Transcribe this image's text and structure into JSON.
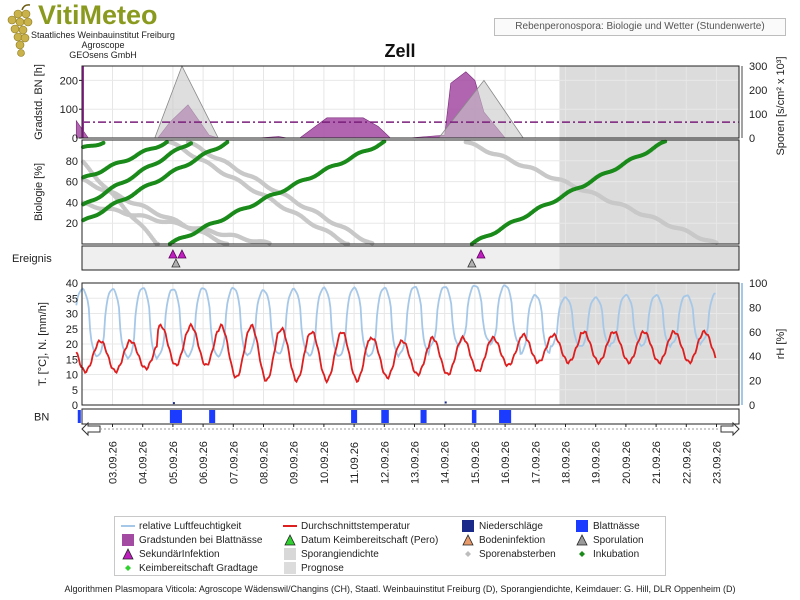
{
  "header": {
    "logo_name": "VitiMeteo",
    "org_lines": [
      "Staatliches Weinbauinstitut Freiburg",
      "Agroscope",
      "GEOsens GmbH"
    ],
    "subtitle": "Rebenperonospora: Biologie und Wetter (Stundenwerte)",
    "title": "Zell"
  },
  "colors": {
    "humidity": "#a6c8e8",
    "temperature": "#dd1f1f",
    "gradstunden": "#a34aa3",
    "secondary_infection": "#c01fc0",
    "sporangia_density": "#bfbfbf",
    "spores_dying": "#c8c8c8",
    "incubation": "#1a8a1a",
    "germination_ready": "#2fd02f",
    "precip": "#1a2a8a",
    "leaf_wetness": "#1b3bff",
    "forecast": "#dcdcdc",
    "threshold_line": "#7a1e7a"
  },
  "axes": {
    "panel1_left_label": "Gradstd. BN [h]",
    "panel1_left_ticks": [
      "0",
      "100",
      "200"
    ],
    "panel1_right_label": "Sporen [s/cm² x 10³]",
    "panel1_right_ticks": [
      "0",
      "100",
      "200",
      "300"
    ],
    "panel2_label": "Biologie [%]",
    "panel2_ticks": [
      "20",
      "40",
      "60",
      "80"
    ],
    "panel3_label": "Ereignis",
    "panel4_left_label": "T. [°C], N. [mm/h]",
    "panel4_left_ticks": [
      "0",
      "5",
      "10",
      "15",
      "20",
      "25",
      "30",
      "35",
      "40"
    ],
    "panel4_right_label": "rH [%]",
    "panel4_right_ticks": [
      "0",
      "20",
      "40",
      "60",
      "80",
      "100"
    ],
    "panel5_label": "BN",
    "dates": [
      "03.09.26",
      "04.09.26",
      "05.09.26",
      "06.09.26",
      "07.09.26",
      "08.09.26",
      "09.09.26",
      "10.09.26",
      "11.09.26",
      "12.09.26",
      "13.09.26",
      "14.09.26",
      "15.09.26",
      "16.09.26",
      "17.09.26",
      "18.09.26",
      "19.09.26",
      "20.09.26",
      "21.09.26",
      "22.09.26",
      "23.09.26"
    ]
  },
  "legend": [
    {
      "label": "relative Luftfeuchtigkeit",
      "symbol": "line",
      "color": "#a6c8e8"
    },
    {
      "label": "Durchschnittstemperatur",
      "symbol": "line",
      "color": "#dd1f1f"
    },
    {
      "label": "Niederschläge",
      "symbol": "square",
      "color": "#1a2a8a"
    },
    {
      "label": "Blattnässe",
      "symbol": "square",
      "color": "#1b3bff"
    },
    {
      "label": "Gradstunden bei Blattnässe",
      "symbol": "square",
      "color": "#a34aa3"
    },
    {
      "label": "Datum Keimbereitschaft (Pero)",
      "symbol": "triangle",
      "color": "#2fd02f"
    },
    {
      "label": "Bodeninfektion",
      "symbol": "triangle",
      "color": "#e89a6a"
    },
    {
      "label": "Sporulation",
      "symbol": "triangle",
      "color": "#9a9a9a"
    },
    {
      "label": "SekundärInfektion",
      "symbol": "triangle",
      "color": "#c01fc0"
    },
    {
      "label": "Sporangiendichte",
      "symbol": "square",
      "color": "#d8d8d8"
    },
    {
      "label": "Sporenabsterben",
      "symbol": "diamond",
      "color": "#bdbdbd"
    },
    {
      "label": "Inkubation",
      "symbol": "diamond",
      "color": "#1a8a1a"
    },
    {
      "label": "Keimbereitschaft Gradtage",
      "symbol": "diamond",
      "color": "#2fd02f"
    },
    {
      "label": "Prognose",
      "symbol": "square",
      "color": "#dcdcdc"
    }
  ],
  "footer": "Algorithmen Plasmopara Viticola: Agroscope Wädenswil/Changins (CH), Staatl. Weinbauinstitut Freiburg (D), Sporangiendichte, Keimdauer: G. Hill, DLR Oppenheim (D)",
  "chart_data": {
    "type": "line",
    "x_unit": "day (index from 03.09.26 = 0)",
    "forecast_start_day": 14.8,
    "x_range": [
      -1.2,
      20.0
    ],
    "panels": {
      "gradstunden_sporen": {
        "gradstunden_area": [
          [
            -1.2,
            60
          ],
          [
            -0.8,
            0
          ],
          [
            1.5,
            0
          ],
          [
            1.9,
            55
          ],
          [
            2.5,
            115
          ],
          [
            3.2,
            10
          ],
          [
            3.5,
            0
          ],
          [
            4.8,
            0
          ],
          [
            5.5,
            5
          ],
          [
            5.8,
            0
          ],
          [
            6.2,
            0
          ],
          [
            7.1,
            70
          ],
          [
            7.6,
            70
          ],
          [
            8.3,
            70
          ],
          [
            8.8,
            40
          ],
          [
            9.2,
            0
          ],
          [
            9.8,
            0
          ],
          [
            11.0,
            10
          ],
          [
            11.2,
            190
          ],
          [
            11.7,
            230
          ],
          [
            12.0,
            200
          ],
          [
            12.3,
            90
          ],
          [
            13.0,
            0
          ]
        ],
        "spores_area": [
          [
            -1.2,
            0
          ],
          [
            1.4,
            0
          ],
          [
            2.3,
            300
          ],
          [
            3.5,
            0
          ],
          [
            10.8,
            0
          ],
          [
            12.3,
            240
          ],
          [
            13.6,
            0
          ]
        ],
        "threshold_gradstunden": 55,
        "left_range": [
          0,
          250
        ],
        "right_range": [
          0,
          300
        ]
      },
      "biologie": {
        "range": [
          0,
          100
        ],
        "incubation_series": [
          {
            "start_day": -1.2,
            "start": 90,
            "end_day": -0.3,
            "end": 98
          },
          {
            "start_day": -1.2,
            "start": 60,
            "end_day": 1.8,
            "end": 98
          },
          {
            "start_day": -1.2,
            "start": 33,
            "end_day": 2.6,
            "end": 98
          },
          {
            "start_day": -1.2,
            "start": 18,
            "end_day": 3.8,
            "end": 98
          },
          {
            "start_day": 1.9,
            "start": 0,
            "end_day": 9.0,
            "end": 98
          },
          {
            "start_day": 11.9,
            "start": 0,
            "end_day": 18.3,
            "end": 98
          }
        ],
        "spores_dying_series": [
          {
            "start_day": -1.2,
            "start": 85,
            "end_day": 1.5,
            "end": 0
          },
          {
            "start_day": -1.2,
            "start": 64,
            "end_day": 3.8,
            "end": 0
          },
          {
            "start_day": -1.2,
            "start": 40,
            "end_day": 5.2,
            "end": 0
          },
          {
            "start_day": 1.9,
            "start": 98,
            "end_day": 7.8,
            "end": 0
          },
          {
            "start_day": 2.5,
            "start": 98,
            "end_day": 8.6,
            "end": 0
          },
          {
            "start_day": 11.7,
            "start": 98,
            "end_day": 20.0,
            "end": 0
          }
        ]
      },
      "ereignis": {
        "events": [
          {
            "type": "SekundärInfektion",
            "day": 2.0
          },
          {
            "type": "SekundärInfektion",
            "day": 2.3
          },
          {
            "type": "Sporulation",
            "day": 2.1
          },
          {
            "type": "SekundärInfektion",
            "day": 12.2
          },
          {
            "type": "Sporulation",
            "day": 11.9
          }
        ]
      },
      "temperatur_feuchte": {
        "temp_range": [
          0,
          40
        ],
        "rh_range": [
          0,
          100
        ],
        "daily_temp_min": [
          11,
          12,
          13,
          13,
          9,
          8,
          8,
          8,
          8,
          9,
          10,
          10,
          11,
          13,
          14,
          14,
          14,
          14,
          14,
          14,
          14
        ],
        "daily_temp_max": [
          21,
          21,
          26,
          26,
          26,
          26,
          25,
          24,
          24,
          22,
          21,
          22,
          22,
          22,
          23,
          23,
          24,
          24,
          24,
          24,
          24
        ],
        "daily_rh_min": [
          40,
          38,
          40,
          40,
          40,
          42,
          42,
          40,
          40,
          40,
          42,
          48,
          52,
          50,
          42,
          48,
          48,
          50,
          48,
          50,
          52
        ],
        "daily_rh_max": [
          95,
          96,
          95,
          96,
          96,
          94,
          95,
          96,
          96,
          96,
          97,
          97,
          98,
          98,
          90,
          88,
          88,
          90,
          90,
          90,
          92
        ]
      },
      "blattnaesse": {
        "wet_periods": [
          [
            -1.15,
            -1.05
          ],
          [
            1.9,
            2.3
          ],
          [
            3.2,
            3.4
          ],
          [
            7.9,
            8.1
          ],
          [
            8.9,
            9.15
          ],
          [
            10.2,
            10.4
          ],
          [
            11.9,
            12.05
          ],
          [
            12.8,
            13.2
          ]
        ]
      }
    }
  }
}
